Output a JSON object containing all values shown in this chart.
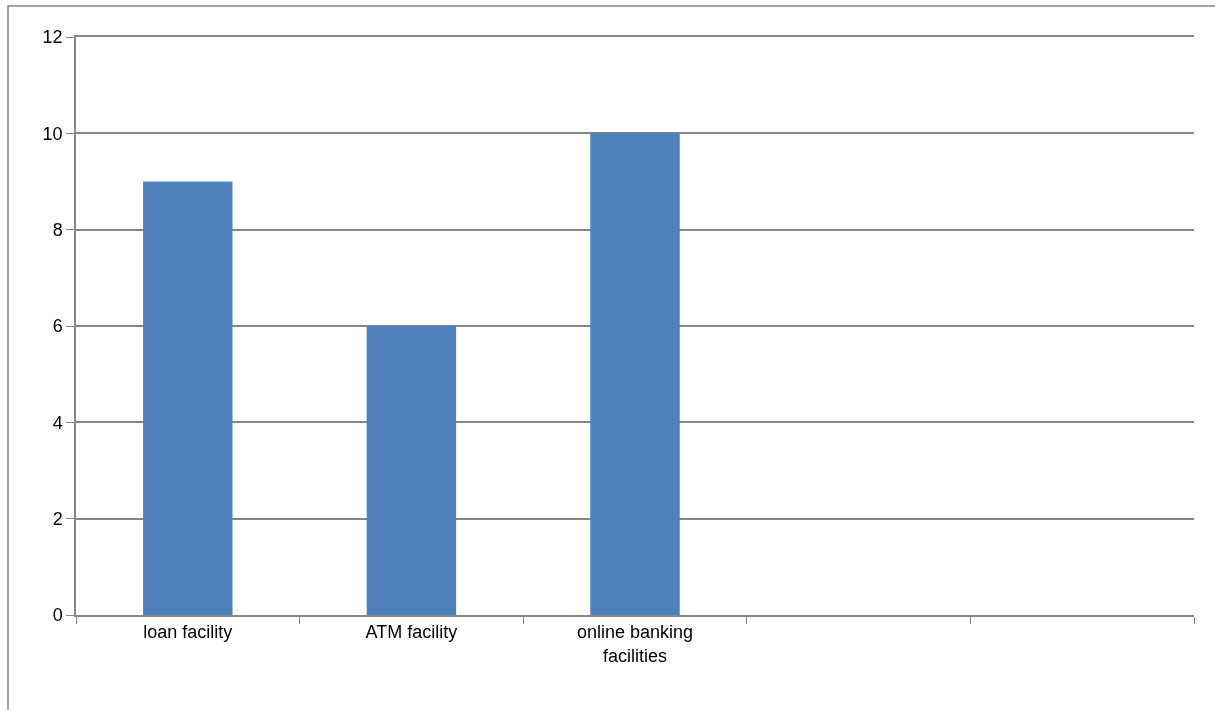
{
  "chart_data": {
    "type": "bar",
    "categories": [
      "loan facility",
      "ATM facility",
      "online banking facilities",
      null,
      null
    ],
    "values": [
      9,
      6,
      10,
      null,
      null
    ],
    "color": "#4f81bd",
    "ylim": [
      0,
      12
    ],
    "yticks": [
      0,
      2,
      4,
      6,
      8,
      10,
      12
    ],
    "grid": "y"
  }
}
